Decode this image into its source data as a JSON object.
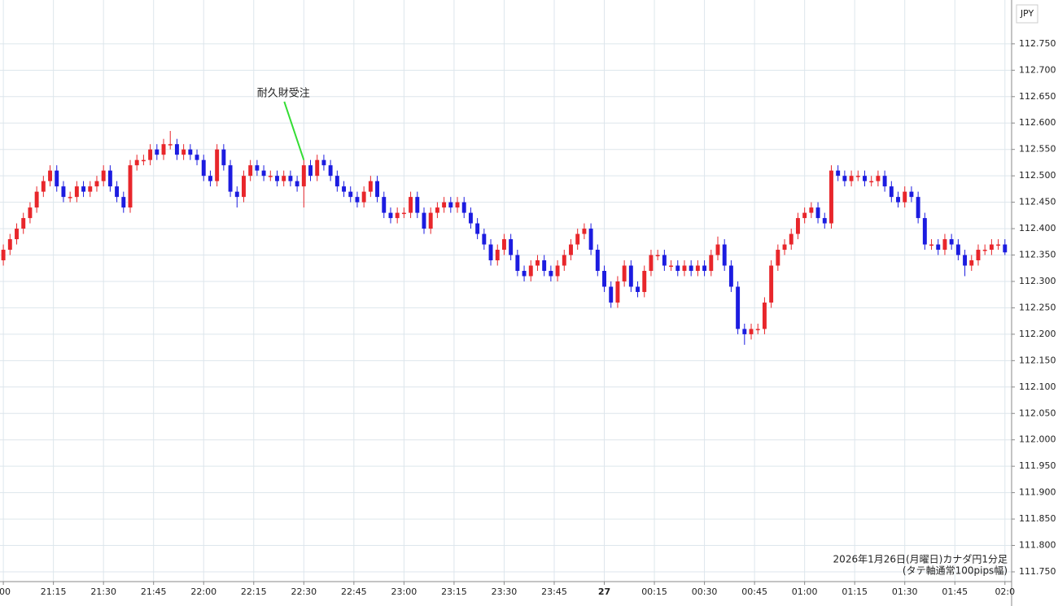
{
  "chart_data": {
    "type": "candlestick",
    "currency": "JPY",
    "footer": [
      "2026年1月26日(月曜日)カナダ円1分足",
      "(タテ軸通常100pips幅)"
    ],
    "up_color": "#e8262b",
    "down_color": "#1c1ce0",
    "grid": true,
    "annotations": [
      {
        "text": "耐久財受注",
        "x": "22:30",
        "color": "#33dd33"
      }
    ],
    "xlim": [
      "20:59",
      "02:02"
    ],
    "xticks": [
      {
        "value": "21:00",
        "label": ":00"
      },
      "21:15",
      "21:30",
      "21:45",
      "22:00",
      "22:15",
      "22:30",
      "22:45",
      "23:00",
      "23:15",
      "23:30",
      "23:45",
      {
        "value": "00:00",
        "label": "27"
      },
      "00:15",
      "00:30",
      "00:45",
      "01:00",
      "01:15",
      "01:30",
      "01:45",
      {
        "value": "02:00",
        "label": "02:0"
      }
    ],
    "ylim": [
      111.7315,
      112.833
    ],
    "yticks": [
      {
        "value": 111.75,
        "label": "111.750"
      },
      {
        "value": 111.8,
        "label": "111.800"
      },
      {
        "value": 111.85,
        "label": "111.850"
      },
      {
        "value": 111.9,
        "label": "111.900"
      },
      {
        "value": 111.95,
        "label": "111.950"
      },
      {
        "value": 112.0,
        "label": "112.000"
      },
      {
        "value": 112.05,
        "label": "112.050"
      },
      {
        "value": 112.1,
        "label": "112.100"
      },
      {
        "value": 112.15,
        "label": "112.150"
      },
      {
        "value": 112.2,
        "label": "112.200"
      },
      {
        "value": 112.25,
        "label": "112.250"
      },
      {
        "value": 112.3,
        "label": "112.300"
      },
      {
        "value": 112.35,
        "label": "112.350"
      },
      {
        "value": 112.4,
        "label": "112.400"
      },
      {
        "value": 112.45,
        "label": "112.450"
      },
      {
        "value": 112.5,
        "label": "112.500"
      },
      {
        "value": 112.55,
        "label": "112.550"
      },
      {
        "value": 112.6,
        "label": "112.600"
      },
      {
        "value": 112.65,
        "label": "112.650"
      },
      {
        "value": 112.7,
        "label": "112.700"
      },
      {
        "value": 112.75,
        "label": "112.750"
      }
    ],
    "x": [
      "21:00",
      "21:02",
      "21:04",
      "21:06",
      "21:08",
      "21:10",
      "21:12",
      "21:14",
      "21:16",
      "21:18",
      "21:20",
      "21:22",
      "21:24",
      "21:26",
      "21:28",
      "21:30",
      "21:32",
      "21:34",
      "21:36",
      "21:38",
      "21:40",
      "21:42",
      "21:44",
      "21:46",
      "21:48",
      "21:50",
      "21:52",
      "21:54",
      "21:56",
      "21:58",
      "22:00",
      "22:02",
      "22:04",
      "22:06",
      "22:08",
      "22:10",
      "22:12",
      "22:14",
      "22:16",
      "22:18",
      "22:20",
      "22:22",
      "22:24",
      "22:26",
      "22:28",
      "22:30",
      "22:32",
      "22:34",
      "22:36",
      "22:38",
      "22:40",
      "22:42",
      "22:44",
      "22:46",
      "22:48",
      "22:50",
      "22:52",
      "22:54",
      "22:56",
      "22:58",
      "23:00",
      "23:02",
      "23:04",
      "23:06",
      "23:08",
      "23:10",
      "23:12",
      "23:14",
      "23:16",
      "23:18",
      "23:20",
      "23:22",
      "23:24",
      "23:26",
      "23:28",
      "23:30",
      "23:32",
      "23:34",
      "23:36",
      "23:38",
      "23:40",
      "23:42",
      "23:44",
      "23:46",
      "23:48",
      "23:50",
      "23:52",
      "23:54",
      "23:56",
      "23:58",
      "00:00",
      "00:02",
      "00:04",
      "00:06",
      "00:08",
      "00:10",
      "00:12",
      "00:14",
      "00:16",
      "00:18",
      "00:20",
      "00:22",
      "00:24",
      "00:26",
      "00:28",
      "00:30",
      "00:32",
      "00:34",
      "00:36",
      "00:38",
      "00:40",
      "00:42",
      "00:44",
      "00:46",
      "00:48",
      "00:50",
      "00:52",
      "00:54",
      "00:56",
      "00:58",
      "01:00",
      "01:02",
      "01:04",
      "01:06",
      "01:08",
      "01:10",
      "01:12",
      "01:14",
      "01:16",
      "01:18",
      "01:20",
      "01:22",
      "01:24",
      "01:26",
      "01:28",
      "01:30",
      "01:32",
      "01:34",
      "01:36",
      "01:38",
      "01:40",
      "01:42",
      "01:44",
      "01:46",
      "01:48",
      "01:50",
      "01:52",
      "01:54",
      "01:56",
      "01:58",
      "02:00"
    ],
    "open": [
      112.34,
      112.36,
      112.38,
      112.4,
      112.42,
      112.44,
      112.47,
      112.49,
      112.51,
      112.48,
      112.46,
      112.46,
      112.48,
      112.47,
      112.48,
      112.49,
      112.51,
      112.48,
      112.46,
      112.44,
      112.52,
      112.53,
      112.53,
      112.55,
      112.54,
      112.56,
      112.56,
      112.54,
      112.55,
      112.54,
      112.53,
      112.5,
      112.49,
      112.55,
      112.52,
      112.47,
      112.46,
      112.5,
      112.52,
      112.51,
      112.5,
      112.5,
      112.49,
      112.5,
      112.49,
      112.48,
      112.52,
      112.5,
      112.53,
      112.52,
      112.5,
      112.48,
      112.47,
      112.46,
      112.45,
      112.47,
      112.49,
      112.46,
      112.43,
      112.42,
      112.43,
      112.43,
      112.46,
      112.43,
      112.4,
      112.43,
      112.44,
      112.45,
      112.44,
      112.45,
      112.43,
      112.41,
      112.39,
      112.37,
      112.34,
      112.36,
      112.38,
      112.35,
      112.32,
      112.31,
      112.33,
      112.34,
      112.32,
      112.31,
      112.33,
      112.35,
      112.37,
      112.39,
      112.4,
      112.36,
      112.32,
      112.29,
      112.26,
      112.3,
      112.33,
      112.29,
      112.28,
      112.32,
      112.35,
      112.35,
      112.33,
      112.33,
      112.32,
      112.33,
      112.32,
      112.33,
      112.32,
      112.35,
      112.37,
      112.33,
      112.29,
      112.21,
      112.2,
      112.21,
      112.21,
      112.26,
      112.33,
      112.36,
      112.37,
      112.39,
      112.42,
      112.43,
      112.44,
      112.42,
      112.41,
      112.51,
      112.5,
      112.49,
      112.5,
      112.5,
      112.49,
      112.49,
      112.5,
      112.48,
      112.46,
      112.45,
      112.47,
      112.46,
      112.42,
      112.37,
      112.37,
      112.36,
      112.38,
      112.37,
      112.35,
      112.33,
      112.34,
      112.36,
      112.36,
      112.37,
      112.37
    ],
    "high": [
      112.37,
      112.39,
      112.41,
      112.43,
      112.45,
      112.48,
      112.5,
      112.52,
      112.52,
      112.49,
      112.47,
      112.49,
      112.49,
      112.49,
      112.5,
      112.52,
      112.52,
      112.49,
      112.47,
      112.53,
      112.54,
      112.54,
      112.56,
      112.56,
      112.57,
      112.585,
      112.57,
      112.56,
      112.56,
      112.55,
      112.54,
      112.51,
      112.56,
      112.56,
      112.53,
      112.48,
      112.51,
      112.53,
      112.53,
      112.52,
      112.51,
      112.51,
      112.51,
      112.51,
      112.5,
      112.53,
      112.53,
      112.54,
      112.54,
      112.53,
      112.51,
      112.49,
      112.48,
      112.47,
      112.48,
      112.5,
      112.5,
      112.47,
      112.44,
      112.44,
      112.44,
      112.47,
      112.47,
      112.44,
      112.44,
      112.45,
      112.46,
      112.46,
      112.46,
      112.46,
      112.44,
      112.42,
      112.4,
      112.38,
      112.37,
      112.39,
      112.39,
      112.36,
      112.33,
      112.34,
      112.35,
      112.35,
      112.33,
      112.34,
      112.36,
      112.38,
      112.4,
      112.41,
      112.41,
      112.37,
      112.33,
      112.3,
      112.31,
      112.34,
      112.34,
      112.3,
      112.33,
      112.36,
      112.36,
      112.36,
      112.34,
      112.34,
      112.34,
      112.34,
      112.34,
      112.34,
      112.36,
      112.385,
      112.38,
      112.34,
      112.3,
      112.22,
      112.22,
      112.22,
      112.27,
      112.34,
      112.37,
      112.38,
      112.4,
      112.43,
      112.44,
      112.45,
      112.45,
      112.43,
      112.52,
      112.52,
      112.51,
      112.51,
      112.51,
      112.51,
      112.5,
      112.51,
      112.51,
      112.49,
      112.47,
      112.48,
      112.48,
      112.47,
      112.43,
      112.38,
      112.38,
      112.39,
      112.39,
      112.38,
      112.36,
      112.35,
      112.37,
      112.37,
      112.38,
      112.38,
      112.38
    ],
    "low": [
      112.33,
      112.35,
      112.37,
      112.39,
      112.41,
      112.43,
      112.46,
      112.48,
      112.47,
      112.45,
      112.45,
      112.45,
      112.46,
      112.46,
      112.47,
      112.48,
      112.47,
      112.45,
      112.43,
      112.43,
      112.51,
      112.52,
      112.52,
      112.53,
      112.53,
      112.55,
      112.53,
      112.53,
      112.53,
      112.52,
      112.49,
      112.48,
      112.48,
      112.51,
      112.46,
      112.44,
      112.45,
      112.49,
      112.5,
      112.49,
      112.49,
      112.48,
      112.48,
      112.48,
      112.47,
      112.44,
      112.49,
      112.49,
      112.51,
      112.49,
      112.47,
      112.46,
      112.45,
      112.44,
      112.44,
      112.46,
      112.45,
      112.42,
      112.41,
      112.41,
      112.42,
      112.42,
      112.42,
      112.39,
      112.39,
      112.42,
      112.43,
      112.43,
      112.43,
      112.42,
      112.4,
      112.38,
      112.36,
      112.33,
      112.33,
      112.35,
      112.34,
      112.31,
      112.3,
      112.3,
      112.32,
      112.31,
      112.3,
      112.3,
      112.32,
      112.34,
      112.36,
      112.38,
      112.35,
      112.31,
      112.28,
      112.25,
      112.25,
      112.29,
      112.28,
      112.27,
      112.27,
      112.31,
      112.34,
      112.32,
      112.32,
      112.31,
      112.31,
      112.31,
      112.31,
      112.31,
      112.31,
      112.34,
      112.32,
      112.28,
      112.2,
      112.18,
      112.19,
      112.2,
      112.2,
      112.25,
      112.32,
      112.35,
      112.36,
      112.38,
      112.41,
      112.42,
      112.41,
      112.4,
      112.4,
      112.49,
      112.48,
      112.48,
      112.49,
      112.48,
      112.48,
      112.48,
      112.47,
      112.45,
      112.44,
      112.44,
      112.45,
      112.41,
      112.36,
      112.36,
      112.35,
      112.35,
      112.36,
      112.34,
      112.31,
      112.32,
      112.33,
      112.35,
      112.35,
      112.36,
      112.35
    ],
    "close": [
      112.36,
      112.38,
      112.4,
      112.42,
      112.44,
      112.47,
      112.49,
      112.51,
      112.48,
      112.46,
      112.46,
      112.48,
      112.47,
      112.48,
      112.49,
      112.51,
      112.48,
      112.46,
      112.44,
      112.52,
      112.53,
      112.53,
      112.55,
      112.54,
      112.56,
      112.56,
      112.54,
      112.55,
      112.54,
      112.53,
      112.5,
      112.49,
      112.55,
      112.52,
      112.47,
      112.46,
      112.5,
      112.52,
      112.51,
      112.5,
      112.5,
      112.49,
      112.5,
      112.49,
      112.48,
      112.52,
      112.5,
      112.53,
      112.52,
      112.5,
      112.48,
      112.47,
      112.46,
      112.45,
      112.47,
      112.49,
      112.46,
      112.43,
      112.42,
      112.43,
      112.43,
      112.46,
      112.43,
      112.4,
      112.43,
      112.44,
      112.45,
      112.44,
      112.45,
      112.43,
      112.41,
      112.39,
      112.37,
      112.34,
      112.36,
      112.38,
      112.35,
      112.32,
      112.31,
      112.33,
      112.34,
      112.32,
      112.31,
      112.33,
      112.35,
      112.37,
      112.39,
      112.4,
      112.36,
      112.32,
      112.29,
      112.26,
      112.3,
      112.33,
      112.29,
      112.28,
      112.32,
      112.35,
      112.35,
      112.33,
      112.33,
      112.32,
      112.33,
      112.32,
      112.33,
      112.32,
      112.35,
      112.37,
      112.33,
      112.29,
      112.21,
      112.2,
      112.21,
      112.21,
      112.26,
      112.33,
      112.36,
      112.37,
      112.39,
      112.42,
      112.43,
      112.44,
      112.42,
      112.41,
      112.51,
      112.5,
      112.49,
      112.5,
      112.5,
      112.49,
      112.49,
      112.5,
      112.48,
      112.46,
      112.45,
      112.47,
      112.46,
      112.42,
      112.37,
      112.37,
      112.36,
      112.38,
      112.37,
      112.35,
      112.33,
      112.34,
      112.36,
      112.36,
      112.37,
      112.37,
      112.355
    ]
  }
}
